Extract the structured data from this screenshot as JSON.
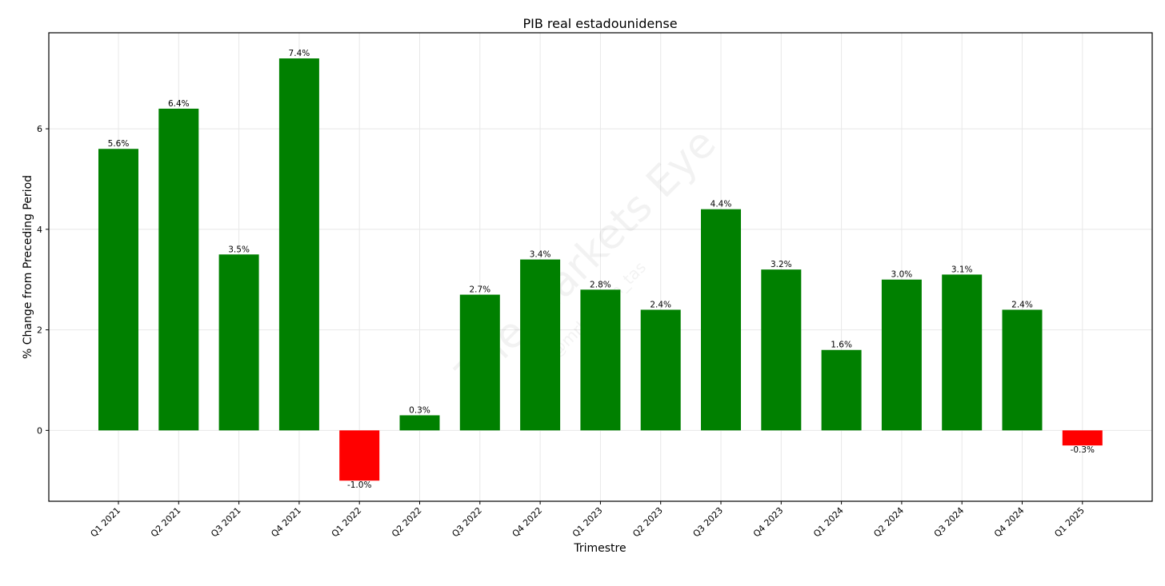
{
  "chart_data": {
    "type": "bar",
    "title": "PIB real estadounidense",
    "xlabel": "Trimestre",
    "ylabel": "% Change from Preceding Period",
    "categories": [
      "Q1 2021",
      "Q2 2021",
      "Q3 2021",
      "Q4 2021",
      "Q1 2022",
      "Q2 2022",
      "Q3 2022",
      "Q4 2022",
      "Q1 2023",
      "Q2 2023",
      "Q3 2023",
      "Q4 2023",
      "Q1 2024",
      "Q2 2024",
      "Q3 2024",
      "Q4 2024",
      "Q1 2025"
    ],
    "values": [
      5.6,
      6.4,
      3.5,
      7.4,
      -1.0,
      0.3,
      2.7,
      3.4,
      2.8,
      2.4,
      4.4,
      3.2,
      1.6,
      3.0,
      3.1,
      2.4,
      -0.3
    ],
    "data_labels": [
      "5.6%",
      "6.4%",
      "3.5%",
      "7.4%",
      "-1.0%",
      "0.3%",
      "2.7%",
      "3.4%",
      "2.8%",
      "2.4%",
      "4.4%",
      "3.2%",
      "1.6%",
      "3.0%",
      "3.1%",
      "2.4%",
      "-0.3%"
    ],
    "yticks": [
      0,
      2,
      4,
      6
    ],
    "ylim": [
      -1.41,
      7.91
    ],
    "grid": true,
    "colors": {
      "positive": "#008000",
      "negative": "#ff0000"
    },
    "watermark": {
      "text": "The Markets Eye",
      "subtext": "@mrbeltran_tas"
    }
  }
}
